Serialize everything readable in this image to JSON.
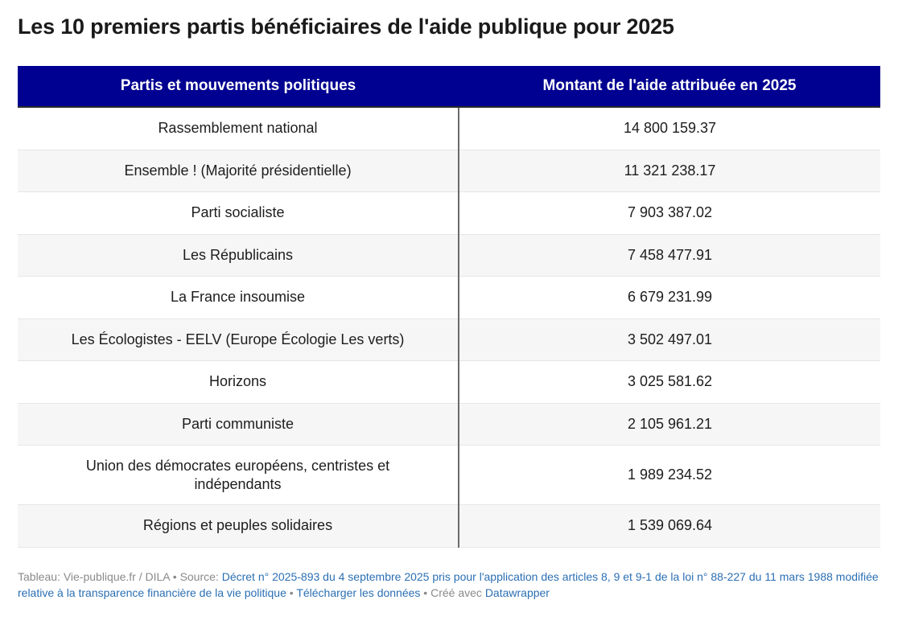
{
  "title": "Les 10 premiers partis bénéficiaires de l'aide publique pour 2025",
  "chart_data": {
    "type": "table",
    "title": "Les 10 premiers partis bénéficiaires de l'aide publique pour 2025",
    "columns": [
      "Partis et mouvements politiques",
      "Montant de l'aide attribuée en 2025"
    ],
    "rows": [
      {
        "party": "Rassemblement national",
        "amount": "14 800 159.37"
      },
      {
        "party": "Ensemble ! (Majorité présidentielle)",
        "amount": "11 321 238.17"
      },
      {
        "party": "Parti socialiste",
        "amount": "7 903 387.02"
      },
      {
        "party": "Les Républicains",
        "amount": "7 458 477.91"
      },
      {
        "party": "La France insoumise",
        "amount": "6 679 231.99"
      },
      {
        "party": "Les Écologistes - EELV (Europe Écologie Les verts)",
        "amount": "3 502 497.01"
      },
      {
        "party": "Horizons",
        "amount": "3 025 581.62"
      },
      {
        "party": "Parti communiste",
        "amount": "2 105 961.21"
      },
      {
        "party": "Union des démocrates européens, centristes et indépendants",
        "amount": "1 989 234.52"
      },
      {
        "party": "Régions et peuples solidaires",
        "amount": "1 539 069.64"
      }
    ],
    "header_color": "#000091"
  },
  "footer": {
    "credit": "Tableau: Vie-publique.fr / DILA",
    "separator": " • ",
    "source_label": "Source: ",
    "source_link": "Décret n° 2025-893 du 4 septembre 2025 pris pour l'application des articles 8, 9 et 9-1 de la loi n° 88-227 du 11 mars 1988 modifiée relative à la transparence financière de la vie politique",
    "download_link": "Télécharger les données",
    "created_with": "Créé avec ",
    "datawrapper_link": "Datawrapper"
  }
}
